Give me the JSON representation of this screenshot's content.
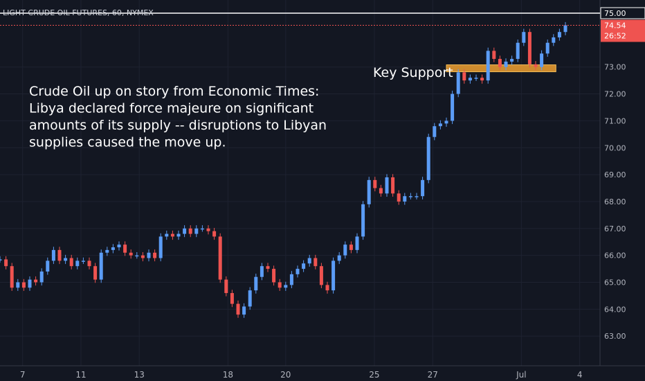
{
  "title": "LIGHT CRUDE OIL FUTURES, 60, NYMEX",
  "colors": {
    "background": "#131722",
    "up": "#5b9cf6",
    "down": "#ef5350",
    "support": "#f0a030",
    "axis_text": "#b2b5be",
    "price_tag": "#ef5350"
  },
  "annotation_text": [
    "Crude Oil up on story from Economic Times:",
    "Libya declared force majeure on significant",
    "amounts of its supply -- disruptions to Libyan",
    "supplies caused the move up."
  ],
  "support_label": "Key Support",
  "price_tags": [
    {
      "label": "75.00",
      "style": "white"
    },
    {
      "label": "74.54",
      "style": "red"
    },
    {
      "label": "26:52",
      "style": "red"
    }
  ],
  "chart_data": {
    "type": "line",
    "y_axis_side": "right",
    "ylim": [
      62.95,
      75.3
    ],
    "xlim": [
      0,
      100
    ],
    "y_ticks": [
      {
        "label": "75.00",
        "value": 75
      },
      {
        "label": "73.00",
        "value": 73
      },
      {
        "label": "72.00",
        "value": 72
      },
      {
        "label": "71.00",
        "value": 71
      },
      {
        "label": "70.00",
        "value": 70
      },
      {
        "label": "69.00",
        "value": 69
      },
      {
        "label": "68.00",
        "value": 68
      },
      {
        "label": "67.00",
        "value": 67
      },
      {
        "label": "66.00",
        "value": 66
      },
      {
        "label": "65.00",
        "value": 65
      },
      {
        "label": "64.00",
        "value": 64
      },
      {
        "label": "63.00",
        "value": 63
      }
    ],
    "x_ticks": [
      {
        "label": "7",
        "x": 3.8
      },
      {
        "label": "11",
        "x": 13.6
      },
      {
        "label": "13",
        "x": 23.4
      },
      {
        "label": "18",
        "x": 38.3
      },
      {
        "label": "20",
        "x": 48.0
      },
      {
        "label": "25",
        "x": 62.9
      },
      {
        "label": "27",
        "x": 72.7
      },
      {
        "label": "Jul",
        "x": 87.6
      },
      {
        "label": "4",
        "x": 97.4
      }
    ],
    "support_zone": {
      "x_start": 75.0,
      "x_end": 93.4,
      "y_low": 72.92,
      "y_high": 73.08
    },
    "series": [
      {
        "values": [
          [
            0,
            65.85
          ],
          [
            1,
            65.6
          ],
          [
            2,
            64.8
          ],
          [
            3,
            65.0
          ],
          [
            4,
            64.8
          ],
          [
            5,
            65.1
          ],
          [
            6,
            65.0
          ],
          [
            7,
            65.4
          ],
          [
            8,
            65.8
          ],
          [
            9,
            66.2
          ],
          [
            10,
            65.8
          ],
          [
            11,
            65.9
          ],
          [
            12,
            65.6
          ],
          [
            13,
            65.8
          ],
          [
            14,
            65.8
          ],
          [
            15,
            65.6
          ],
          [
            16,
            65.1
          ],
          [
            17,
            66.1
          ],
          [
            18,
            66.2
          ],
          [
            19,
            66.3
          ],
          [
            20,
            66.4
          ],
          [
            21,
            66.1
          ],
          [
            22,
            66.0
          ],
          [
            23,
            66.0
          ],
          [
            24,
            65.9
          ],
          [
            25,
            66.1
          ],
          [
            26,
            65.9
          ],
          [
            27,
            66.7
          ],
          [
            28,
            66.8
          ],
          [
            29,
            66.7
          ],
          [
            30,
            66.8
          ],
          [
            31,
            67.0
          ],
          [
            32,
            66.8
          ],
          [
            33,
            67.0
          ],
          [
            34,
            67.0
          ],
          [
            35,
            66.9
          ],
          [
            36,
            66.7
          ],
          [
            37,
            65.1
          ],
          [
            38,
            64.6
          ],
          [
            39,
            64.2
          ],
          [
            40,
            63.8
          ],
          [
            41,
            64.1
          ],
          [
            42,
            64.7
          ],
          [
            43,
            65.2
          ],
          [
            44,
            65.6
          ],
          [
            45,
            65.5
          ],
          [
            46,
            65.0
          ],
          [
            47,
            64.8
          ],
          [
            48,
            64.9
          ],
          [
            49,
            65.3
          ],
          [
            50,
            65.5
          ],
          [
            51,
            65.7
          ],
          [
            52,
            65.9
          ],
          [
            53,
            65.6
          ],
          [
            54,
            64.9
          ],
          [
            55,
            64.7
          ],
          [
            56,
            65.8
          ],
          [
            57,
            66.0
          ],
          [
            58,
            66.4
          ],
          [
            59,
            66.2
          ],
          [
            60,
            66.7
          ],
          [
            61,
            67.9
          ],
          [
            62,
            68.8
          ],
          [
            63,
            68.5
          ],
          [
            64,
            68.3
          ],
          [
            65,
            68.9
          ],
          [
            66,
            68.3
          ],
          [
            67,
            68.0
          ],
          [
            68,
            68.2
          ],
          [
            69,
            68.2
          ],
          [
            70,
            68.2
          ],
          [
            71,
            68.8
          ],
          [
            72,
            70.4
          ],
          [
            73,
            70.8
          ],
          [
            74,
            70.9
          ],
          [
            75,
            71.0
          ],
          [
            76,
            72.0
          ],
          [
            77,
            72.8
          ],
          [
            78,
            72.5
          ],
          [
            79,
            72.6
          ],
          [
            80,
            72.6
          ],
          [
            81,
            72.5
          ],
          [
            82,
            73.6
          ],
          [
            83,
            73.3
          ],
          [
            84,
            73.0
          ],
          [
            85,
            73.2
          ],
          [
            86,
            73.3
          ],
          [
            87,
            73.9
          ],
          [
            88,
            74.3
          ],
          [
            89,
            73.1
          ],
          [
            90,
            73.0
          ],
          [
            91,
            73.5
          ],
          [
            92,
            73.9
          ],
          [
            93,
            74.1
          ],
          [
            94,
            74.3
          ],
          [
            95,
            74.55
          ]
        ]
      }
    ]
  }
}
